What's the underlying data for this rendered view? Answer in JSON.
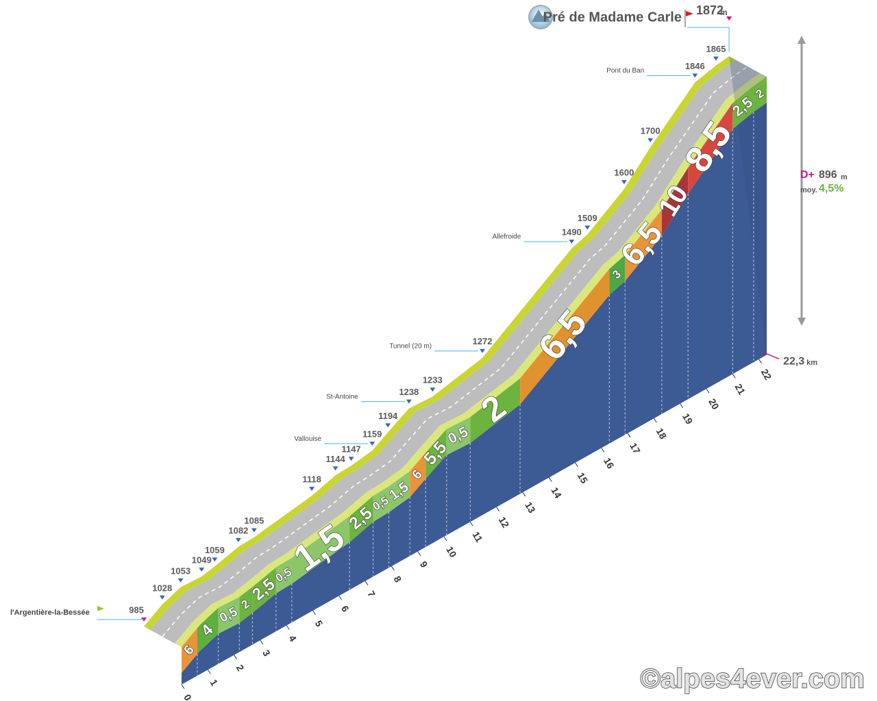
{
  "chart_data": {
    "type": "climb-profile",
    "title": "Pré de Madame Carle",
    "summit": {
      "alt": 1872,
      "unit": "m"
    },
    "distance": {
      "value": 22.3,
      "label": "22,3",
      "unit": "km"
    },
    "elevation_gain": {
      "label": "D+",
      "value": 896,
      "unit": "m"
    },
    "average": {
      "label": "moy.",
      "value": 4.5,
      "value_label": "4,5%"
    },
    "credit": "©alpes4ever.com",
    "xticks": [
      0,
      1,
      2,
      3,
      4,
      5,
      6,
      7,
      8,
      9,
      10,
      11,
      12,
      13,
      14,
      15,
      16,
      17,
      18,
      19,
      20,
      21,
      22
    ],
    "points": [
      {
        "km": 0,
        "alt": 985,
        "place": "l'Argentière-la-Bessée"
      },
      {
        "km": 0.7,
        "alt": 1028
      },
      {
        "km": 1.4,
        "alt": 1053
      },
      {
        "km": 2.2,
        "alt": 1049
      },
      {
        "km": 2.7,
        "alt": 1059
      },
      {
        "km": 3.6,
        "alt": 1082
      },
      {
        "km": 4.2,
        "alt": 1085
      },
      {
        "km": 6.4,
        "alt": 1118
      },
      {
        "km": 7.3,
        "alt": 1144
      },
      {
        "km": 7.9,
        "alt": 1147
      },
      {
        "km": 8.7,
        "alt": 1159,
        "place": "Vallouise"
      },
      {
        "km": 9.3,
        "alt": 1194
      },
      {
        "km": 10.1,
        "alt": 1238,
        "place": "St-Antoine"
      },
      {
        "km": 11,
        "alt": 1233
      },
      {
        "km": 12.9,
        "alt": 1272,
        "place": "Tunnel (20 m)"
      },
      {
        "km": 16.3,
        "alt": 1490,
        "place": "Allefroide"
      },
      {
        "km": 16.9,
        "alt": 1509
      },
      {
        "km": 18.3,
        "alt": 1600
      },
      {
        "km": 19.3,
        "alt": 1700
      },
      {
        "km": 21,
        "alt": 1846,
        "place": "Pont du Ban"
      },
      {
        "km": 21.8,
        "alt": 1865
      }
    ],
    "segments": [
      {
        "km": 0,
        "grade": 6,
        "label": "6",
        "color": "#e8943a"
      },
      {
        "km": 0.6,
        "grade": 4,
        "label": "4",
        "color": "#5fae3e"
      },
      {
        "km": 1.4,
        "grade": 0.5,
        "label": "0,5",
        "color": "#8cc66b"
      },
      {
        "km": 2.2,
        "grade": 2,
        "label": "2",
        "color": "#6cb33f"
      },
      {
        "km": 2.7,
        "grade": 2.5,
        "label": "2,5",
        "color": "#6cb33f"
      },
      {
        "km": 3.6,
        "grade": 0.5,
        "label": "0,5",
        "color": "#8cc66b"
      },
      {
        "km": 4.2,
        "grade": 1.5,
        "label": "1,5",
        "color": "#8cc66b"
      },
      {
        "km": 6.4,
        "grade": 2.5,
        "label": "2,5",
        "color": "#6cb33f"
      },
      {
        "km": 7.3,
        "grade": 0.5,
        "label": "0,5",
        "color": "#8cc66b"
      },
      {
        "km": 7.9,
        "grade": 1.5,
        "label": "1,5",
        "color": "#8cc66b"
      },
      {
        "km": 8.7,
        "grade": 6,
        "label": "6",
        "color": "#e8943a"
      },
      {
        "km": 9.3,
        "grade": 5.5,
        "label": "5,5",
        "color": "#6cb33f"
      },
      {
        "km": 10.1,
        "grade": 0.5,
        "label": "0,5",
        "color": "#8cc66b"
      },
      {
        "km": 11,
        "grade": 2,
        "label": "2",
        "color": "#6cb33f"
      },
      {
        "km": 12.9,
        "grade": 6.5,
        "label": "6,5",
        "color": "#e0922e"
      },
      {
        "km": 16.3,
        "grade": 3,
        "label": "3",
        "color": "#4ea745"
      },
      {
        "km": 16.9,
        "grade": 6.5,
        "label": "6,5",
        "color": "#e8943a"
      },
      {
        "km": 18.3,
        "grade": 10,
        "label": "10",
        "color": "#a8353a"
      },
      {
        "km": 19.3,
        "grade": 8.5,
        "label": "8,5",
        "color": "#d8473f"
      },
      {
        "km": 21,
        "grade": 2.5,
        "label": "2,5",
        "color": "#6cb33f"
      },
      {
        "km": 21.8,
        "grade": 2,
        "label": "2",
        "color": "#6cb33f"
      }
    ]
  }
}
